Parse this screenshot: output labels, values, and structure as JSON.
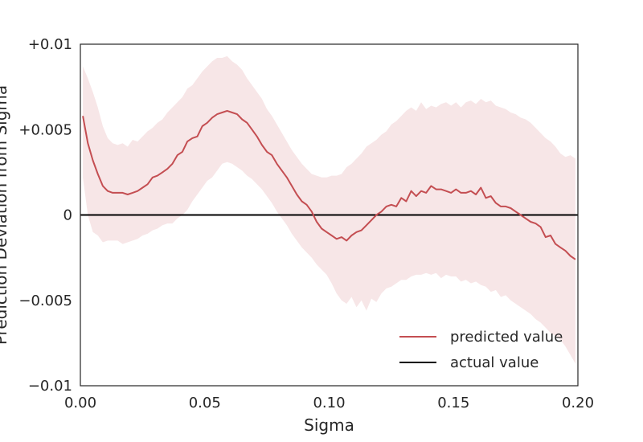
{
  "chart_data": {
    "type": "line",
    "xlabel": "Sigma",
    "ylabel": "Prediction Deviation from Sigma",
    "xlim": [
      0.0,
      0.2
    ],
    "ylim": [
      -0.01,
      0.01
    ],
    "x_ticks": [
      {
        "value": 0.0,
        "label": "0.00"
      },
      {
        "value": 0.05,
        "label": "0.05"
      },
      {
        "value": 0.1,
        "label": "0.10"
      },
      {
        "value": 0.15,
        "label": "0.15"
      },
      {
        "value": 0.2,
        "label": "0.20"
      }
    ],
    "y_ticks": [
      {
        "value": 0.01,
        "label": "+0.01"
      },
      {
        "value": 0.005,
        "label": "+0.005"
      },
      {
        "value": 0.0,
        "label": "0"
      },
      {
        "value": -0.005,
        "label": "−0.005"
      },
      {
        "value": -0.01,
        "label": "−0.01"
      }
    ],
    "grid": false,
    "legend_position": "bottom-right",
    "colors": {
      "predicted": "#c44e52",
      "band": "#f7e6e7",
      "actual": "#000000",
      "axes": "#262626"
    },
    "series": [
      {
        "name": "predicted value",
        "color": "#c44e52",
        "x": [
          0.001,
          0.003,
          0.005,
          0.007,
          0.009,
          0.011,
          0.013,
          0.015,
          0.017,
          0.019,
          0.021,
          0.023,
          0.025,
          0.027,
          0.029,
          0.031,
          0.033,
          0.035,
          0.037,
          0.039,
          0.041,
          0.043,
          0.045,
          0.047,
          0.049,
          0.051,
          0.053,
          0.055,
          0.057,
          0.059,
          0.061,
          0.063,
          0.065,
          0.067,
          0.069,
          0.071,
          0.073,
          0.075,
          0.077,
          0.079,
          0.081,
          0.083,
          0.085,
          0.087,
          0.089,
          0.091,
          0.093,
          0.095,
          0.097,
          0.099,
          0.101,
          0.103,
          0.105,
          0.107,
          0.109,
          0.111,
          0.113,
          0.115,
          0.117,
          0.119,
          0.121,
          0.123,
          0.125,
          0.127,
          0.129,
          0.131,
          0.133,
          0.135,
          0.137,
          0.139,
          0.141,
          0.143,
          0.145,
          0.147,
          0.149,
          0.151,
          0.153,
          0.155,
          0.157,
          0.159,
          0.161,
          0.163,
          0.165,
          0.167,
          0.169,
          0.171,
          0.173,
          0.175,
          0.177,
          0.179,
          0.181,
          0.183,
          0.185,
          0.187,
          0.189,
          0.191,
          0.193,
          0.195,
          0.197,
          0.199
        ],
        "y": [
          0.0058,
          0.0042,
          0.0032,
          0.0024,
          0.0017,
          0.0014,
          0.0013,
          0.0013,
          0.0013,
          0.0012,
          0.0013,
          0.0014,
          0.0016,
          0.0018,
          0.0022,
          0.0023,
          0.0025,
          0.0027,
          0.003,
          0.0035,
          0.0037,
          0.0043,
          0.0045,
          0.0046,
          0.0052,
          0.0054,
          0.0057,
          0.0059,
          0.006,
          0.0061,
          0.006,
          0.0059,
          0.0056,
          0.0054,
          0.005,
          0.0046,
          0.0041,
          0.0037,
          0.0035,
          0.003,
          0.0026,
          0.0022,
          0.0017,
          0.0012,
          0.0008,
          0.0006,
          0.0002,
          -0.0004,
          -0.0008,
          -0.001,
          -0.0012,
          -0.0014,
          -0.0013,
          -0.0015,
          -0.0012,
          -0.001,
          -0.0009,
          -0.0006,
          -0.0003,
          0.0,
          0.0002,
          0.0005,
          0.0006,
          0.0005,
          0.001,
          0.0008,
          0.0014,
          0.0011,
          0.0014,
          0.0013,
          0.0017,
          0.0015,
          0.0015,
          0.0014,
          0.0013,
          0.0015,
          0.0013,
          0.0013,
          0.0014,
          0.0012,
          0.0016,
          0.001,
          0.0011,
          0.0007,
          0.0005,
          0.0005,
          0.0004,
          0.0002,
          0.0,
          -0.0002,
          -0.0004,
          -0.0005,
          -0.0007,
          -0.0013,
          -0.0012,
          -0.0017,
          -0.0019,
          -0.0021,
          -0.0024,
          -0.0026
        ],
        "lower": [
          0.0022,
          0.0,
          -0.001,
          -0.0012,
          -0.0016,
          -0.0015,
          -0.0015,
          -0.0015,
          -0.0017,
          -0.0016,
          -0.0015,
          -0.0014,
          -0.0012,
          -0.0011,
          -0.0009,
          -0.0008,
          -0.0006,
          -0.0005,
          -0.0005,
          -0.0002,
          0.0,
          0.0003,
          0.0008,
          0.0012,
          0.0016,
          0.002,
          0.0022,
          0.0026,
          0.003,
          0.0031,
          0.003,
          0.0028,
          0.0026,
          0.0023,
          0.0021,
          0.0018,
          0.0015,
          0.0011,
          0.0007,
          0.0002,
          -0.0002,
          -0.0006,
          -0.0011,
          -0.0015,
          -0.0019,
          -0.0022,
          -0.0025,
          -0.0029,
          -0.0032,
          -0.0035,
          -0.004,
          -0.0046,
          -0.005,
          -0.0052,
          -0.0048,
          -0.0054,
          -0.005,
          -0.0056,
          -0.0049,
          -0.0051,
          -0.0046,
          -0.0043,
          -0.0042,
          -0.004,
          -0.0038,
          -0.0038,
          -0.0036,
          -0.0035,
          -0.0035,
          -0.0034,
          -0.0035,
          -0.0034,
          -0.0037,
          -0.0035,
          -0.0036,
          -0.0036,
          -0.0039,
          -0.0038,
          -0.004,
          -0.0039,
          -0.0041,
          -0.0042,
          -0.0045,
          -0.0044,
          -0.0048,
          -0.0047,
          -0.005,
          -0.0052,
          -0.0054,
          -0.0056,
          -0.0058,
          -0.0061,
          -0.0063,
          -0.0066,
          -0.0069,
          -0.0071,
          -0.0073,
          -0.0077,
          -0.0082,
          -0.0087
        ],
        "upper": [
          0.0087,
          0.008,
          0.0072,
          0.0063,
          0.0052,
          0.0045,
          0.0042,
          0.0041,
          0.0042,
          0.004,
          0.0044,
          0.0043,
          0.0046,
          0.0049,
          0.0051,
          0.0054,
          0.0056,
          0.006,
          0.0063,
          0.0066,
          0.0069,
          0.0074,
          0.0076,
          0.008,
          0.0084,
          0.0087,
          0.009,
          0.0092,
          0.0092,
          0.0093,
          0.009,
          0.0088,
          0.0085,
          0.008,
          0.0076,
          0.0072,
          0.0068,
          0.0062,
          0.0058,
          0.0053,
          0.0048,
          0.0043,
          0.0038,
          0.0034,
          0.003,
          0.0027,
          0.0024,
          0.0023,
          0.0022,
          0.0022,
          0.0023,
          0.0023,
          0.0024,
          0.0028,
          0.003,
          0.0033,
          0.0036,
          0.004,
          0.0042,
          0.0044,
          0.0047,
          0.0049,
          0.0053,
          0.0055,
          0.0058,
          0.0061,
          0.0063,
          0.0061,
          0.0066,
          0.0062,
          0.0064,
          0.0063,
          0.0065,
          0.0066,
          0.0064,
          0.0066,
          0.0063,
          0.0066,
          0.0067,
          0.0065,
          0.0068,
          0.0066,
          0.0067,
          0.0064,
          0.0063,
          0.0062,
          0.006,
          0.0059,
          0.0057,
          0.0056,
          0.0054,
          0.0051,
          0.0048,
          0.0045,
          0.0043,
          0.004,
          0.0036,
          0.0034,
          0.0035,
          0.0033
        ]
      },
      {
        "name": "actual value",
        "color": "#000000",
        "x": [
          0.0,
          0.2
        ],
        "y": [
          0.0,
          0.0
        ]
      }
    ]
  }
}
